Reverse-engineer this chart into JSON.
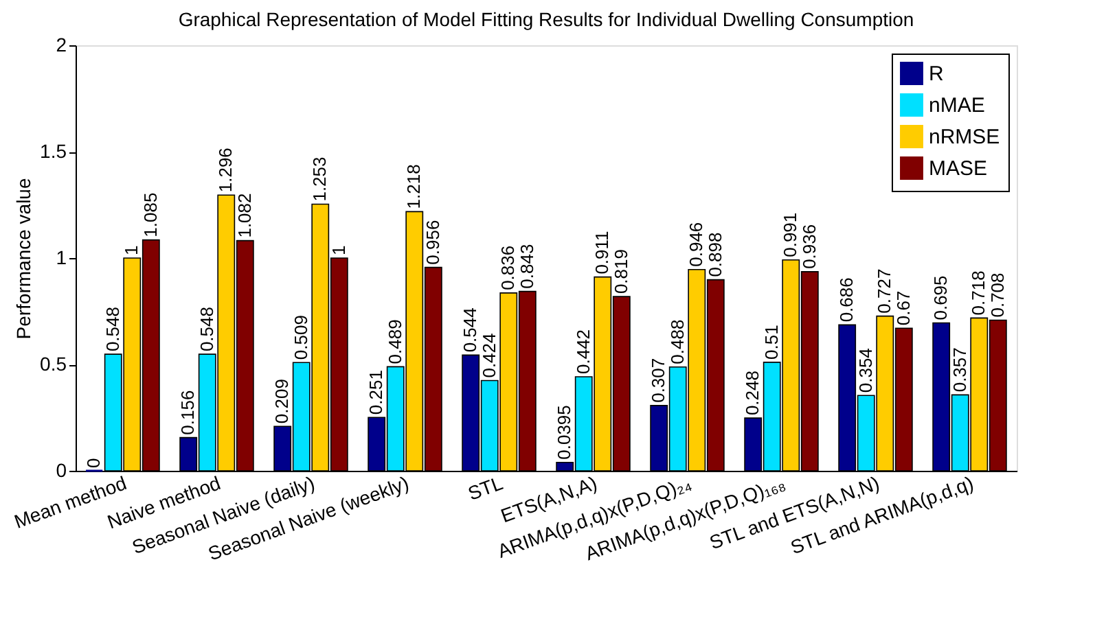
{
  "chart_data": {
    "type": "bar",
    "title": "Graphical Representation of Model Fitting Results for Individual Dwelling Consumption",
    "ylabel": "Performance value",
    "categories": [
      "Mean method",
      "Naive method",
      "Seasonal Naive (daily)",
      "Seasonal Naive (weekly)",
      "STL",
      "ETS(A,N,A)",
      "ARIMA(p,d,q)x(P,D,Q)₂₄",
      "ARIMA(p,d,q)x(P,D,Q)₁₆₈",
      "STL and ETS(A,N,N)",
      "STL and ARIMA(p,d,q)"
    ],
    "series": [
      {
        "name": "R",
        "color": "#00008b",
        "values": [
          0,
          0.156,
          0.209,
          0.251,
          0.544,
          0.0395,
          0.307,
          0.248,
          0.686,
          0.695
        ]
      },
      {
        "name": "nMAE",
        "color": "#00e0ff",
        "values": [
          0.548,
          0.548,
          0.509,
          0.489,
          0.424,
          0.442,
          0.488,
          0.51,
          0.354,
          0.357
        ]
      },
      {
        "name": "nRMSE",
        "color": "#ffcc00",
        "values": [
          1,
          1.296,
          1.253,
          1.218,
          0.836,
          0.911,
          0.946,
          0.991,
          0.727,
          0.718
        ]
      },
      {
        "name": "MASE",
        "color": "#800000",
        "values": [
          1.085,
          1.082,
          1,
          0.956,
          0.843,
          0.819,
          0.898,
          0.936,
          0.67,
          0.708
        ]
      }
    ],
    "ylim": [
      0,
      2
    ],
    "yticks": [
      0,
      0.5,
      1,
      1.5,
      2
    ],
    "grid": false,
    "legend": "top right",
    "data_labels": true
  }
}
